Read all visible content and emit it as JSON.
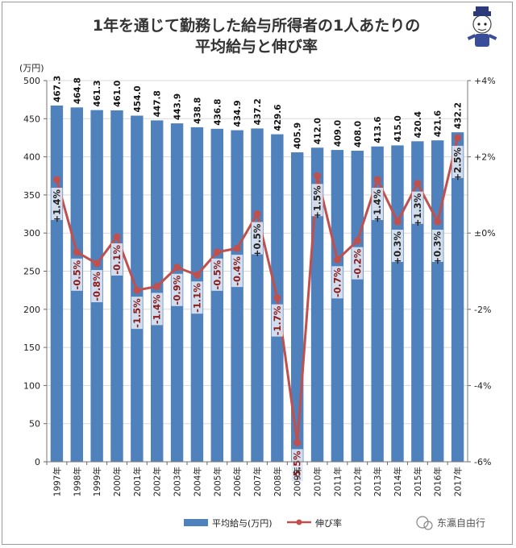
{
  "chart_data": {
    "type": "bar",
    "title_lines": [
      "1年を通じて勤務した給与所得者の1人あたりの",
      "平均給与と伸び率"
    ],
    "unit_label": "(万円)",
    "categories": [
      "1997年",
      "1998年",
      "1999年",
      "2000年",
      "2001年",
      "2002年",
      "2003年",
      "2004年",
      "2005年",
      "2006年",
      "2007年",
      "2008年",
      "2009年",
      "2010年",
      "2011年",
      "2012年",
      "2013年",
      "2014年",
      "2015年",
      "2016年",
      "2017年"
    ],
    "series": [
      {
        "name": "平均給与(万円)",
        "type": "bar",
        "axis": "left",
        "color": "#4f81bd",
        "values": [
          467.3,
          464.8,
          461.3,
          461.0,
          454.0,
          447.8,
          443.9,
          438.8,
          436.8,
          434.9,
          437.2,
          429.6,
          405.9,
          412.0,
          409.0,
          408.0,
          413.6,
          415.0,
          420.4,
          421.6,
          432.2
        ],
        "labels": [
          "467.3",
          "464.8",
          "461.3",
          "461.0",
          "454.0",
          "447.8",
          "443.9",
          "438.8",
          "436.8",
          "434.9",
          "437.2",
          "429.6",
          "405.9",
          "412.0",
          "409.0",
          "408.0",
          "413.6",
          "415.0",
          "420.4",
          "421.6",
          "432.2"
        ]
      },
      {
        "name": "伸び率",
        "type": "line",
        "axis": "right",
        "color": "#c0504d",
        "values": [
          1.4,
          -0.5,
          -0.8,
          -0.1,
          -1.5,
          -1.4,
          -0.9,
          -1.1,
          -0.5,
          -0.4,
          0.5,
          -1.7,
          -5.5,
          1.5,
          -0.7,
          -0.2,
          1.4,
          0.3,
          1.3,
          0.3,
          2.5
        ],
        "labels": [
          "+1.4%",
          "-0.5%",
          "-0.8%",
          "-0.1%",
          "-1.5%",
          "-1.4%",
          "-0.9%",
          "-1.1%",
          "-0.5%",
          "-0.4%",
          "+0.5%",
          "-1.7%",
          "-5.5%",
          "+1.5%",
          "-0.7%",
          "-0.2%",
          "+1.4%",
          "+0.3%",
          "+1.3%",
          "+0.3%",
          "+2.5%"
        ]
      }
    ],
    "y_left": {
      "min": 0,
      "max": 500,
      "step": 50,
      "ticks": [
        "0",
        "50",
        "100",
        "150",
        "200",
        "250",
        "300",
        "350",
        "400",
        "450",
        "500"
      ]
    },
    "y_right": {
      "min": -6,
      "max": 4,
      "step": 2,
      "ticks": [
        "-6%",
        "-4%",
        "-2%",
        "±0%",
        "+2%",
        "+4%"
      ]
    },
    "grid": true,
    "legend_position": "bottom"
  },
  "watermark": {
    "text": "东瀛自由行"
  },
  "colors": {
    "bar": "#4f81bd",
    "line": "#c0504d",
    "gain_text": "#1f1f1f",
    "loss_text": "#8b1a1a",
    "grid": "#d9d9d9"
  }
}
